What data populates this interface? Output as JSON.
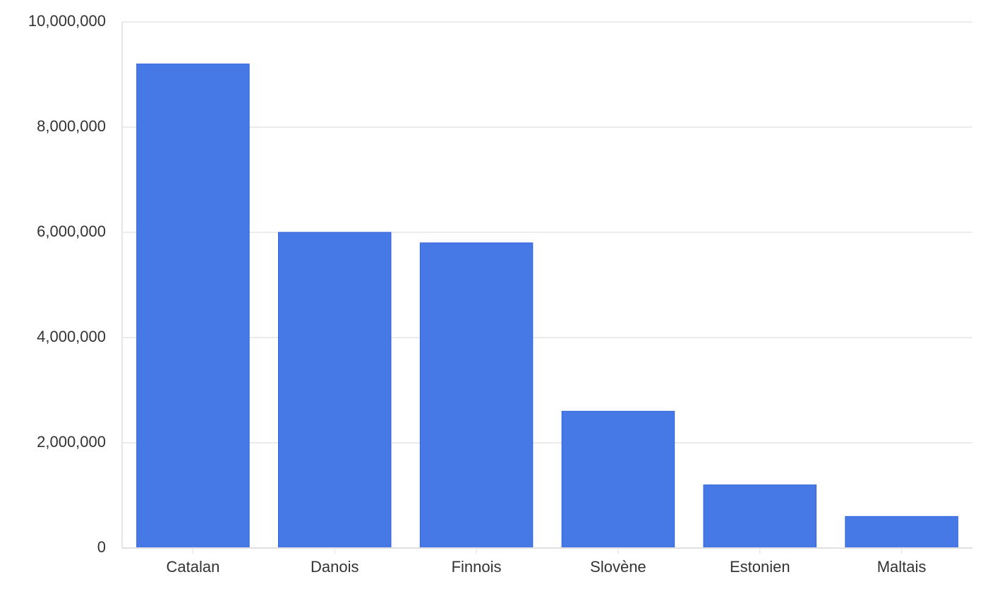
{
  "chart_data": {
    "type": "bar",
    "categories": [
      "Catalan",
      "Danois",
      "Finnois",
      "Slovène",
      "Estonien",
      "Maltais"
    ],
    "values": [
      9200000,
      6000000,
      5800000,
      2600000,
      1200000,
      600000
    ],
    "color": "#4679e6",
    "ylim": [
      0,
      10000000
    ],
    "yticks": [
      0,
      {
        "value": 2000000,
        "label": "2,000,000"
      },
      {
        "value": 4000000,
        "label": "4,000,000"
      },
      {
        "value": 6000000,
        "label": "6,000,000"
      },
      {
        "value": 8000000,
        "label": "8,000,000"
      },
      {
        "value": 10000000,
        "label": "10,000,000"
      }
    ],
    "grid": true
  }
}
